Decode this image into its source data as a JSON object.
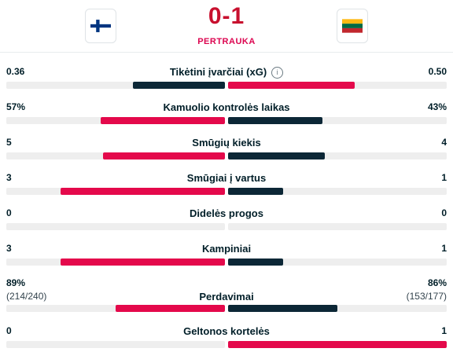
{
  "match": {
    "score": "0-1",
    "status": "PERTRAUKA",
    "home_flag": "finland-flag",
    "away_flag": "lithuania-flag"
  },
  "colors": {
    "accent": "#e4094b",
    "dark": "#0c2736",
    "track": "#eeeeee"
  },
  "stats": [
    {
      "label": "Tikėtini įvarčiai (xG)",
      "home": "0.36",
      "away": "0.50",
      "home_share": 0.42,
      "away_share": 0.58,
      "leader": "away",
      "info": "i"
    },
    {
      "label": "Kamuolio kontrolės laikas",
      "home": "57%",
      "away": "43%",
      "home_share": 0.57,
      "away_share": 0.43,
      "leader": "home"
    },
    {
      "label": "Smūgių kiekis",
      "home": "5",
      "away": "4",
      "home_share": 0.556,
      "away_share": 0.444,
      "leader": "home"
    },
    {
      "label": "Smūgiai į vartus",
      "home": "3",
      "away": "1",
      "home_share": 0.75,
      "away_share": 0.25,
      "leader": "home"
    },
    {
      "label": "Didelės progos",
      "home": "0",
      "away": "0",
      "home_share": 0,
      "away_share": 0,
      "leader": "none"
    },
    {
      "label": "Kampiniai",
      "home": "3",
      "away": "1",
      "home_share": 0.75,
      "away_share": 0.25,
      "leader": "home"
    },
    {
      "label": "Perdavimai",
      "home": "89%",
      "away": "86%",
      "home_sub": "(214/240)",
      "away_sub": "(153/177)",
      "home_share": 0.5,
      "away_share": 0.5,
      "leader": "home"
    },
    {
      "label": "Geltonos kortelės",
      "home": "0",
      "away": "1",
      "home_share": 0,
      "away_share": 1,
      "leader": "away"
    }
  ]
}
